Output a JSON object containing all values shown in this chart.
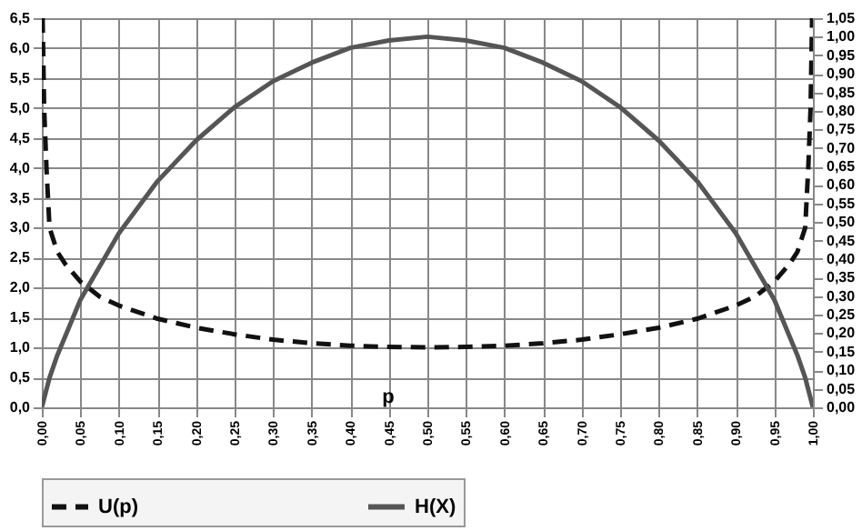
{
  "chart_data": {
    "type": "line",
    "xlabel": "p",
    "legend": "bottom",
    "grid": true,
    "marker": "none",
    "xlim": [
      0,
      1
    ],
    "xticks": [
      {
        "value": 0,
        "label": "0,00"
      },
      {
        "value": 0.05,
        "label": "0,05"
      },
      {
        "value": 0.1,
        "label": "0,10"
      },
      {
        "value": 0.15,
        "label": "0,15"
      },
      {
        "value": 0.2,
        "label": "0,20"
      },
      {
        "value": 0.25,
        "label": "0,25"
      },
      {
        "value": 0.3,
        "label": "0,30"
      },
      {
        "value": 0.35,
        "label": "0,35"
      },
      {
        "value": 0.4,
        "label": "0,40"
      },
      {
        "value": 0.45,
        "label": "0,45"
      },
      {
        "value": 0.5,
        "label": "0,50"
      },
      {
        "value": 0.55,
        "label": "0,55"
      },
      {
        "value": 0.6,
        "label": "0,60"
      },
      {
        "value": 0.65,
        "label": "0,65"
      },
      {
        "value": 0.7,
        "label": "0,70"
      },
      {
        "value": 0.75,
        "label": "0,75"
      },
      {
        "value": 0.8,
        "label": "0,80"
      },
      {
        "value": 0.85,
        "label": "0,85"
      },
      {
        "value": 0.9,
        "label": "0,90"
      },
      {
        "value": 0.95,
        "label": "0,95"
      },
      {
        "value": 1,
        "label": "1,00"
      }
    ],
    "ylim": [
      0,
      6.5
    ],
    "yticks": [
      {
        "value": 0,
        "label": "0,0"
      },
      {
        "value": 0.5,
        "label": "0,5"
      },
      {
        "value": 1,
        "label": "1,0"
      },
      {
        "value": 1.5,
        "label": "1,5"
      },
      {
        "value": 2,
        "label": "2,0"
      },
      {
        "value": 2.5,
        "label": "2,5"
      },
      {
        "value": 3,
        "label": "3,0"
      },
      {
        "value": 3.5,
        "label": "3,5"
      },
      {
        "value": 4,
        "label": "4,0"
      },
      {
        "value": 4.5,
        "label": "4,5"
      },
      {
        "value": 5,
        "label": "5,0"
      },
      {
        "value": 5.5,
        "label": "5,5"
      },
      {
        "value": 6,
        "label": "6,0"
      },
      {
        "value": 6.5,
        "label": "6,5"
      }
    ],
    "y2lim": [
      0,
      1.05
    ],
    "y2ticks": [
      {
        "value": 0,
        "label": "0,00"
      },
      {
        "value": 0.05,
        "label": "0,05"
      },
      {
        "value": 0.1,
        "label": "0,10"
      },
      {
        "value": 0.15,
        "label": "0,15"
      },
      {
        "value": 0.2,
        "label": "0,20"
      },
      {
        "value": 0.25,
        "label": "0,25"
      },
      {
        "value": 0.3,
        "label": "0,30"
      },
      {
        "value": 0.35,
        "label": "0,35"
      },
      {
        "value": 0.4,
        "label": "0,40"
      },
      {
        "value": 0.45,
        "label": "0,45"
      },
      {
        "value": 0.5,
        "label": "0,50"
      },
      {
        "value": 0.55,
        "label": "0,55"
      },
      {
        "value": 0.6,
        "label": "0,60"
      },
      {
        "value": 0.65,
        "label": "0,65"
      },
      {
        "value": 0.7,
        "label": "0,70"
      },
      {
        "value": 0.75,
        "label": "0,75"
      },
      {
        "value": 0.8,
        "label": "0,80"
      },
      {
        "value": 0.85,
        "label": "0,85"
      },
      {
        "value": 0.9,
        "label": "0,90"
      },
      {
        "value": 0.95,
        "label": "0,95"
      },
      {
        "value": 1,
        "label": "1,00"
      },
      {
        "value": 1.05,
        "label": "1,05"
      }
    ],
    "series": [
      {
        "name": "U(p)",
        "color": "#111111",
        "line_style": "dashed",
        "x": [
          0.001,
          0.003,
          0.006,
          0.01,
          0.02,
          0.03,
          0.05,
          0.075,
          0.1,
          0.15,
          0.2,
          0.25,
          0.3,
          0.35,
          0.4,
          0.45,
          0.5,
          0.55,
          0.6,
          0.65,
          0.7,
          0.75,
          0.8,
          0.85,
          0.9,
          0.925,
          0.95,
          0.97,
          0.98,
          0.99,
          0.994,
          0.997,
          0.999
        ],
        "values": [
          6.5,
          5.0,
          4.0,
          3.0,
          2.6,
          2.4,
          2.1,
          1.85,
          1.7,
          1.48,
          1.33,
          1.22,
          1.13,
          1.07,
          1.03,
          1.01,
          1.0,
          1.01,
          1.03,
          1.07,
          1.13,
          1.22,
          1.33,
          1.48,
          1.7,
          1.85,
          2.1,
          2.4,
          2.6,
          3.0,
          4.0,
          5.0,
          6.5
        ]
      },
      {
        "name": "H(X)",
        "color": "#555555",
        "line_style": "solid",
        "axis": "y2",
        "x": [
          0,
          0.01,
          0.02,
          0.05,
          0.1,
          0.15,
          0.2,
          0.25,
          0.3,
          0.35,
          0.4,
          0.45,
          0.5,
          0.55,
          0.6,
          0.65,
          0.7,
          0.75,
          0.8,
          0.85,
          0.9,
          0.95,
          0.98,
          0.99,
          1
        ],
        "values": [
          0,
          0.08,
          0.14,
          0.29,
          0.47,
          0.61,
          0.72,
          0.81,
          0.88,
          0.93,
          0.97,
          0.99,
          1.0,
          0.99,
          0.97,
          0.93,
          0.88,
          0.81,
          0.72,
          0.61,
          0.47,
          0.29,
          0.14,
          0.08,
          0
        ]
      }
    ]
  }
}
